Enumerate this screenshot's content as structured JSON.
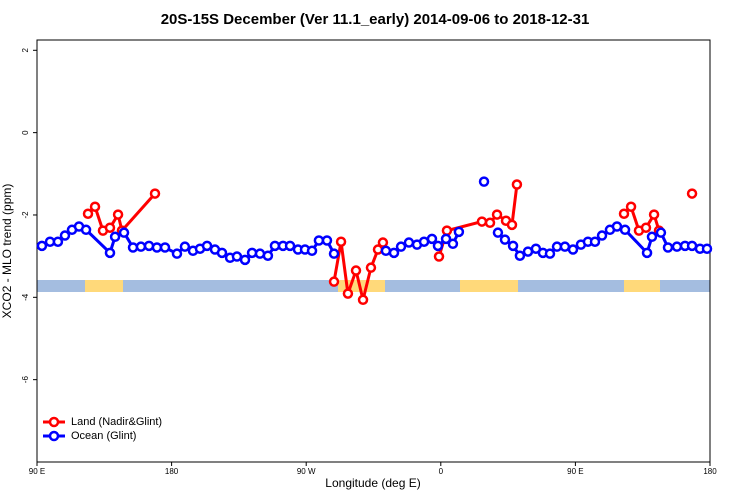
{
  "chart_data": {
    "type": "line",
    "title": "20S-15S December (Ver 11.1_early)   2014-09-06 to 2018-12-31",
    "xlabel": "Longitude (deg E)",
    "ylabel": "XCO2 - MLO trend (ppm)",
    "xlim": [
      90,
      540
    ],
    "ylim": [
      -8,
      2.25
    ],
    "xticks": [
      {
        "value": 90,
        "label": "90 E"
      },
      180,
      {
        "value": 270,
        "label": "90 W"
      },
      {
        "value": 360,
        "label": "0"
      },
      {
        "value": 450,
        "label": "90 E"
      },
      {
        "value": 540,
        "label": "180"
      }
    ],
    "yticks": [
      -6,
      -4,
      -2,
      0,
      2
    ],
    "legend": "bottom-left",
    "series": [
      {
        "name": "Land (Nadir&Glint)",
        "color": "#ff0000",
        "x": [
          124.1,
          128.8,
          134.1,
          138.8,
          144.2,
          146.8,
          168.9,
          null,
          288.6,
          293.3,
          297.9,
          303.3,
          308.0,
          313.3,
          318.0,
          321.3,
          null,
          358.8,
          364.1,
          387.5,
          392.9,
          397.6,
          403.6,
          407.6,
          410.9,
          null,
          482.5,
          487.2,
          492.5,
          497.2,
          502.6,
          505.9,
          null,
          528.0
        ],
        "values": [
          -1.97,
          -1.8,
          -2.38,
          -2.31,
          -1.99,
          -2.38,
          -1.48,
          null,
          -3.62,
          -2.65,
          -3.91,
          -3.35,
          -4.06,
          -3.28,
          -2.84,
          -2.67,
          null,
          -3.01,
          -2.38,
          -2.16,
          -2.19,
          -1.99,
          -2.14,
          -2.24,
          -1.26,
          null,
          -1.97,
          -1.8,
          -2.38,
          -2.31,
          -1.99,
          -2.38,
          null,
          -1.48
        ]
      },
      {
        "name": "Ocean (Glint)",
        "color": "#0000ff",
        "x": [
          93.3,
          98.7,
          104.0,
          108.7,
          113.4,
          118.1,
          122.8,
          138.8,
          142.2,
          148.2,
          154.2,
          159.5,
          164.9,
          170.2,
          175.6,
          183.6,
          188.9,
          194.3,
          199.0,
          203.7,
          209.0,
          213.7,
          219.1,
          223.7,
          229.1,
          233.8,
          239.1,
          244.4,
          249.1,
          254.5,
          259.2,
          264.5,
          269.2,
          273.9,
          278.5,
          283.9,
          288.6,
          null,
          323.3,
          328.7,
          333.4,
          338.7,
          344.1,
          348.8,
          354.1,
          358.1,
          363.5,
          368.1,
          372.1,
          null,
          388.9,
          null,
          398.2,
          402.9,
          408.3,
          412.9,
          418.3,
          423.6,
          428.3,
          433.0,
          437.7,
          443.0,
          448.4,
          453.7,
          458.4,
          463.1,
          467.8,
          473.1,
          477.8,
          483.2,
          497.9,
          501.2,
          507.2,
          511.9,
          517.9,
          523.3,
          528.0,
          533.3,
          538.0
        ],
        "values": [
          -2.75,
          -2.65,
          -2.65,
          -2.5,
          -2.36,
          -2.28,
          -2.36,
          -2.92,
          -2.53,
          -2.43,
          -2.79,
          -2.77,
          -2.75,
          -2.79,
          -2.79,
          -2.94,
          -2.77,
          -2.87,
          -2.82,
          -2.75,
          -2.84,
          -2.92,
          -3.04,
          -3.01,
          -3.09,
          -2.92,
          -2.94,
          -2.99,
          -2.75,
          -2.75,
          -2.75,
          -2.84,
          -2.84,
          -2.87,
          -2.62,
          -2.62,
          -2.94,
          null,
          -2.87,
          -2.92,
          -2.77,
          -2.67,
          -2.72,
          -2.65,
          -2.58,
          -2.75,
          -2.58,
          -2.7,
          -2.41,
          null,
          -1.19,
          null,
          -2.43,
          -2.6,
          -2.75,
          -2.99,
          -2.89,
          -2.82,
          -2.92,
          -2.94,
          -2.77,
          -2.77,
          -2.84,
          -2.72,
          -2.65,
          -2.65,
          -2.5,
          -2.36,
          -2.28,
          -2.36,
          -2.92,
          -2.53,
          -2.43,
          -2.79,
          -2.77,
          -2.75,
          -2.75,
          -2.82,
          -2.82
        ]
      }
    ]
  }
}
